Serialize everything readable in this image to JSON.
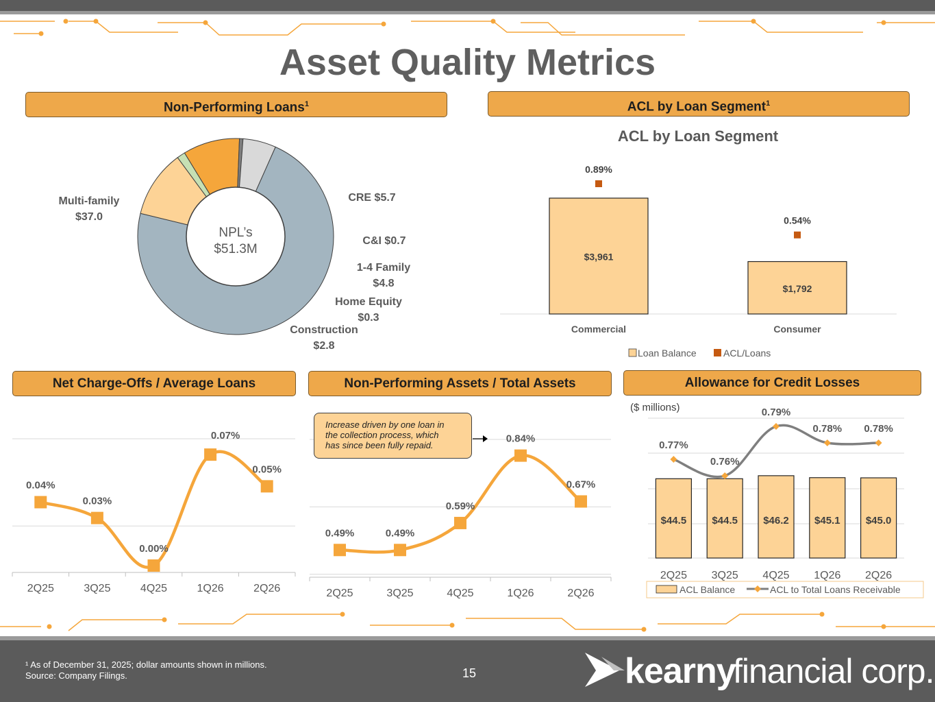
{
  "page": {
    "title": "Asset Quality Metrics",
    "page_number": "15",
    "footnote_line1": "¹ As of December 31, 2025; dollar amounts shown in millions.",
    "footnote_line2": "Source: Company Filings.",
    "logo_text_bold": "kearny",
    "logo_text_light": "financial corp."
  },
  "headers": {
    "npl": "Non-Performing Loans",
    "acl_segment": "ACL by Loan Segment",
    "nco": "Net Charge-Offs / Average Loans",
    "npa": "Non-Performing Assets / Total Assets",
    "allowance": "Allowance for Credit Losses",
    "superscript": "1"
  },
  "colors": {
    "orange": "#f5a63b",
    "header_orange": "#eea84a",
    "peach": "#fdd396",
    "slate": "#a3b5c0",
    "gray": "#808080",
    "dark_orange": "#c55a11"
  },
  "chart_data": [
    {
      "type": "pie",
      "subtype": "donut",
      "center_label_line1": "NPL’s",
      "center_label_line2": "$51.3M",
      "slices": [
        {
          "name": "Multi-family",
          "value": 37.0,
          "label_line1": "Multi-family",
          "label_line2": "$37.0",
          "color": "#a3b5c0"
        },
        {
          "name": "CRE",
          "value": 5.7,
          "label_line1": "CRE $5.7",
          "label_line2": "",
          "color": "#fdd396"
        },
        {
          "name": "C&I",
          "value": 0.7,
          "label_line1": "C&I $0.7",
          "label_line2": "",
          "color": "#c6e0b4"
        },
        {
          "name": "1-4 Family",
          "value": 4.8,
          "label_line1": "1-4 Family",
          "label_line2": "$4.8",
          "color": "#f5a63b"
        },
        {
          "name": "Home Equity",
          "value": 0.3,
          "label_line1": "Home Equity",
          "label_line2": "$0.3",
          "color": "#7f7f7f"
        },
        {
          "name": "Construction",
          "value": 2.8,
          "label_line1": "Construction",
          "label_line2": "$2.8",
          "color": "#d9d9d9"
        }
      ]
    },
    {
      "type": "bar",
      "title": "ACL by Loan Segment",
      "categories": [
        "Commercial",
        "Consumer"
      ],
      "series": [
        {
          "name": "Loan Balance",
          "values": [
            3961,
            1792
          ],
          "labels": [
            "$3,961",
            "$1,792"
          ],
          "color": "#fdd396"
        },
        {
          "name": "ACL/Loans",
          "values": [
            0.89,
            0.54
          ],
          "labels": [
            "0.89%",
            "0.54%"
          ],
          "color": "#c55a11"
        }
      ],
      "legend": "bottom"
    },
    {
      "type": "line",
      "categories": [
        "2Q25",
        "3Q25",
        "4Q25",
        "1Q26",
        "2Q26"
      ],
      "values": [
        0.04,
        0.03,
        0.0,
        0.07,
        0.05
      ],
      "labels": [
        "0.04%",
        "0.03%",
        "0.00%",
        "0.07%",
        "0.05%"
      ],
      "ylim": [
        0,
        0.08
      ],
      "grid": true
    },
    {
      "type": "line",
      "categories": [
        "2Q25",
        "3Q25",
        "4Q25",
        "1Q26",
        "2Q26"
      ],
      "values": [
        0.49,
        0.49,
        0.59,
        0.84,
        0.67
      ],
      "labels": [
        "0.49%",
        "0.49%",
        "0.59%",
        "0.84%",
        "0.67%"
      ],
      "annotation": [
        "Increase driven by one loan in",
        "the collection process, which",
        "has since been fully repaid."
      ],
      "ylim": [
        0.3,
        0.9
      ],
      "grid": true
    },
    {
      "type": "bar",
      "ylabel": "($ millions)",
      "categories": [
        "2Q25",
        "3Q25",
        "4Q25",
        "1Q26",
        "2Q26"
      ],
      "series": [
        {
          "name": "ACL Balance",
          "values": [
            44.5,
            44.5,
            46.2,
            45.1,
            45.0
          ],
          "labels": [
            "$44.5",
            "$44.5",
            "$46.2",
            "$45.1",
            "$45.0"
          ],
          "color": "#fdd396"
        },
        {
          "name": "ACL to Total Loans Receivable",
          "values": [
            0.77,
            0.76,
            0.79,
            0.78,
            0.78
          ],
          "labels": [
            "0.77%",
            "0.76%",
            "0.79%",
            "0.78%",
            "0.78%"
          ],
          "color": "#7f7f7f"
        }
      ],
      "legend": "bottom"
    }
  ]
}
